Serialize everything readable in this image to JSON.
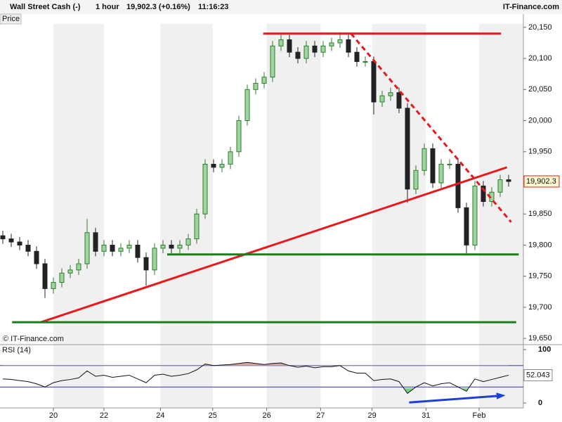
{
  "header": {
    "instrument": "Wall Street Cash (-)",
    "timeframe": "1 hour",
    "last": "19,902.3 (+0.16%)",
    "time": "11:16:23",
    "brand": "IT-Finance.com"
  },
  "chart_data": [
    {
      "type": "candlestick",
      "pane_label": "Price",
      "copyright": "© IT-Finance.com",
      "up_color": "#2e7d32",
      "down_color": "#222222",
      "open": [
        19815,
        19810,
        19805,
        19800,
        19790,
        19770,
        19730,
        19740,
        19755,
        19760,
        19770,
        19820,
        19790,
        19800,
        19790,
        19795,
        19800,
        19780,
        19760,
        19795,
        19800,
        19795,
        19800,
        19810,
        19850,
        19930,
        19925,
        19930,
        19950,
        20000,
        20050,
        20060,
        20070,
        20120,
        20130,
        20110,
        20100,
        20120,
        20110,
        20120,
        20125,
        20130,
        20110,
        20095,
        20095,
        20030,
        20040,
        20045,
        20020,
        19890,
        19920,
        19955,
        19900,
        19930,
        19930,
        19860,
        19800,
        19895,
        19870,
        19885,
        19905
      ],
      "high": [
        19823,
        19818,
        19813,
        19808,
        19798,
        19778,
        19748,
        19763,
        19768,
        19778,
        19842,
        19828,
        19808,
        19808,
        19803,
        19808,
        19808,
        19788,
        19803,
        19808,
        19808,
        19808,
        19818,
        19858,
        19938,
        19938,
        19938,
        19958,
        20008,
        20058,
        20068,
        20078,
        20128,
        20138,
        20138,
        20118,
        20128,
        20128,
        20128,
        20133,
        20142,
        20138,
        20118,
        20103,
        20103,
        20048,
        20053,
        20053,
        20028,
        19928,
        19963,
        19963,
        19938,
        19938,
        19938,
        19868,
        19903,
        19903,
        19893,
        19913,
        19913
      ],
      "low": [
        19802,
        19797,
        19792,
        19782,
        19762,
        19715,
        19722,
        19732,
        19747,
        19752,
        19762,
        19782,
        19782,
        19782,
        19782,
        19787,
        19772,
        19735,
        19752,
        19787,
        19787,
        19787,
        19792,
        19802,
        19842,
        19917,
        19917,
        19922,
        19942,
        19992,
        20042,
        20052,
        20062,
        20112,
        20102,
        20092,
        20092,
        20102,
        20102,
        20112,
        20117,
        20102,
        20087,
        20087,
        20010,
        20022,
        20032,
        20012,
        19868,
        19882,
        19912,
        19892,
        19892,
        19922,
        19852,
        19785,
        19792,
        19862,
        19862,
        19877,
        19894
      ],
      "close": [
        19810,
        19805,
        19800,
        19790,
        19770,
        19730,
        19740,
        19755,
        19760,
        19770,
        19820,
        19790,
        19800,
        19790,
        19795,
        19800,
        19780,
        19760,
        19795,
        19800,
        19795,
        19800,
        19810,
        19850,
        19930,
        19925,
        19930,
        19950,
        20000,
        20050,
        20060,
        20070,
        20120,
        20130,
        20110,
        20100,
        20120,
        20110,
        20120,
        20125,
        20130,
        20110,
        20095,
        20095,
        20030,
        20040,
        20045,
        20020,
        19890,
        19920,
        19955,
        19900,
        19930,
        19930,
        19860,
        19800,
        19895,
        19870,
        19885,
        19905,
        19902.3
      ],
      "last_label": "19,902.3",
      "ylim": [
        19640,
        20160
      ],
      "yticks": [
        {
          "value": 19650,
          "label": "19,650"
        },
        {
          "value": 19700,
          "label": "19,700"
        },
        {
          "value": 19750,
          "label": "19,750"
        },
        {
          "value": 19800,
          "label": "19,800"
        },
        {
          "value": 19850,
          "label": "19,850"
        },
        {
          "value": 19900,
          "label": "19,900"
        },
        {
          "value": 19950,
          "label": "19,950"
        },
        {
          "value": 20000,
          "label": "20,000"
        },
        {
          "value": 20050,
          "label": "20,050"
        },
        {
          "value": 20100,
          "label": "20,100"
        },
        {
          "value": 20150,
          "label": "20,150"
        }
      ],
      "xticks": [
        {
          "value": 6,
          "label": "20"
        },
        {
          "value": 12,
          "label": "22"
        },
        {
          "value": 18.7,
          "label": "24"
        },
        {
          "value": 24.9,
          "label": "25"
        },
        {
          "value": 31.3,
          "label": "26"
        },
        {
          "value": 37.7,
          "label": "27"
        },
        {
          "value": 43.8,
          "label": "29"
        },
        {
          "value": 50.2,
          "label": "31"
        },
        {
          "value": 56.5,
          "label": "Feb"
        }
      ],
      "lines": [
        {
          "x1": 30.9,
          "y1": 20140,
          "x2": 59.1,
          "y2": 20140,
          "color": "#e8191c",
          "dashed": false
        },
        {
          "x1": 41.3,
          "y1": 20140,
          "x2": 60.3,
          "y2": 19837,
          "color": "#e8191c",
          "dashed": true
        },
        {
          "x1": 4.5,
          "y1": 19676,
          "x2": 59.8,
          "y2": 19925,
          "color": "#e8191c",
          "dashed": false
        },
        {
          "x1": 19.5,
          "y1": 19785,
          "x2": 61.2,
          "y2": 19785,
          "color": "#1a7f1a",
          "dashed": false
        },
        {
          "x1": 1.1,
          "y1": 19676,
          "x2": 60.9,
          "y2": 19676,
          "color": "#1a7f1a",
          "dashed": false
        }
      ]
    },
    {
      "type": "line",
      "pane_label": "RSI (14)",
      "color": "#111111",
      "values": [
        45,
        44,
        42,
        40,
        36,
        30,
        38,
        42,
        44,
        47,
        60,
        50,
        52,
        48,
        50,
        52,
        45,
        38,
        52,
        54,
        50,
        52,
        55,
        62,
        73,
        70,
        71,
        72,
        74,
        76,
        74,
        72,
        74,
        75,
        70,
        67,
        69,
        66,
        68,
        68,
        70,
        60,
        56,
        56,
        42,
        44,
        45,
        40,
        18,
        30,
        38,
        32,
        36,
        38,
        30,
        22,
        45,
        40,
        44,
        48,
        52.043
      ],
      "ylim": [
        0,
        100
      ],
      "yticks": [
        0,
        100
      ],
      "bands": [
        30,
        70
      ],
      "lines": [
        {
          "x1": 48.2,
          "y1": 1,
          "x2": 59.3,
          "y2": 14,
          "color": "#1f3fd6"
        }
      ]
    }
  ]
}
